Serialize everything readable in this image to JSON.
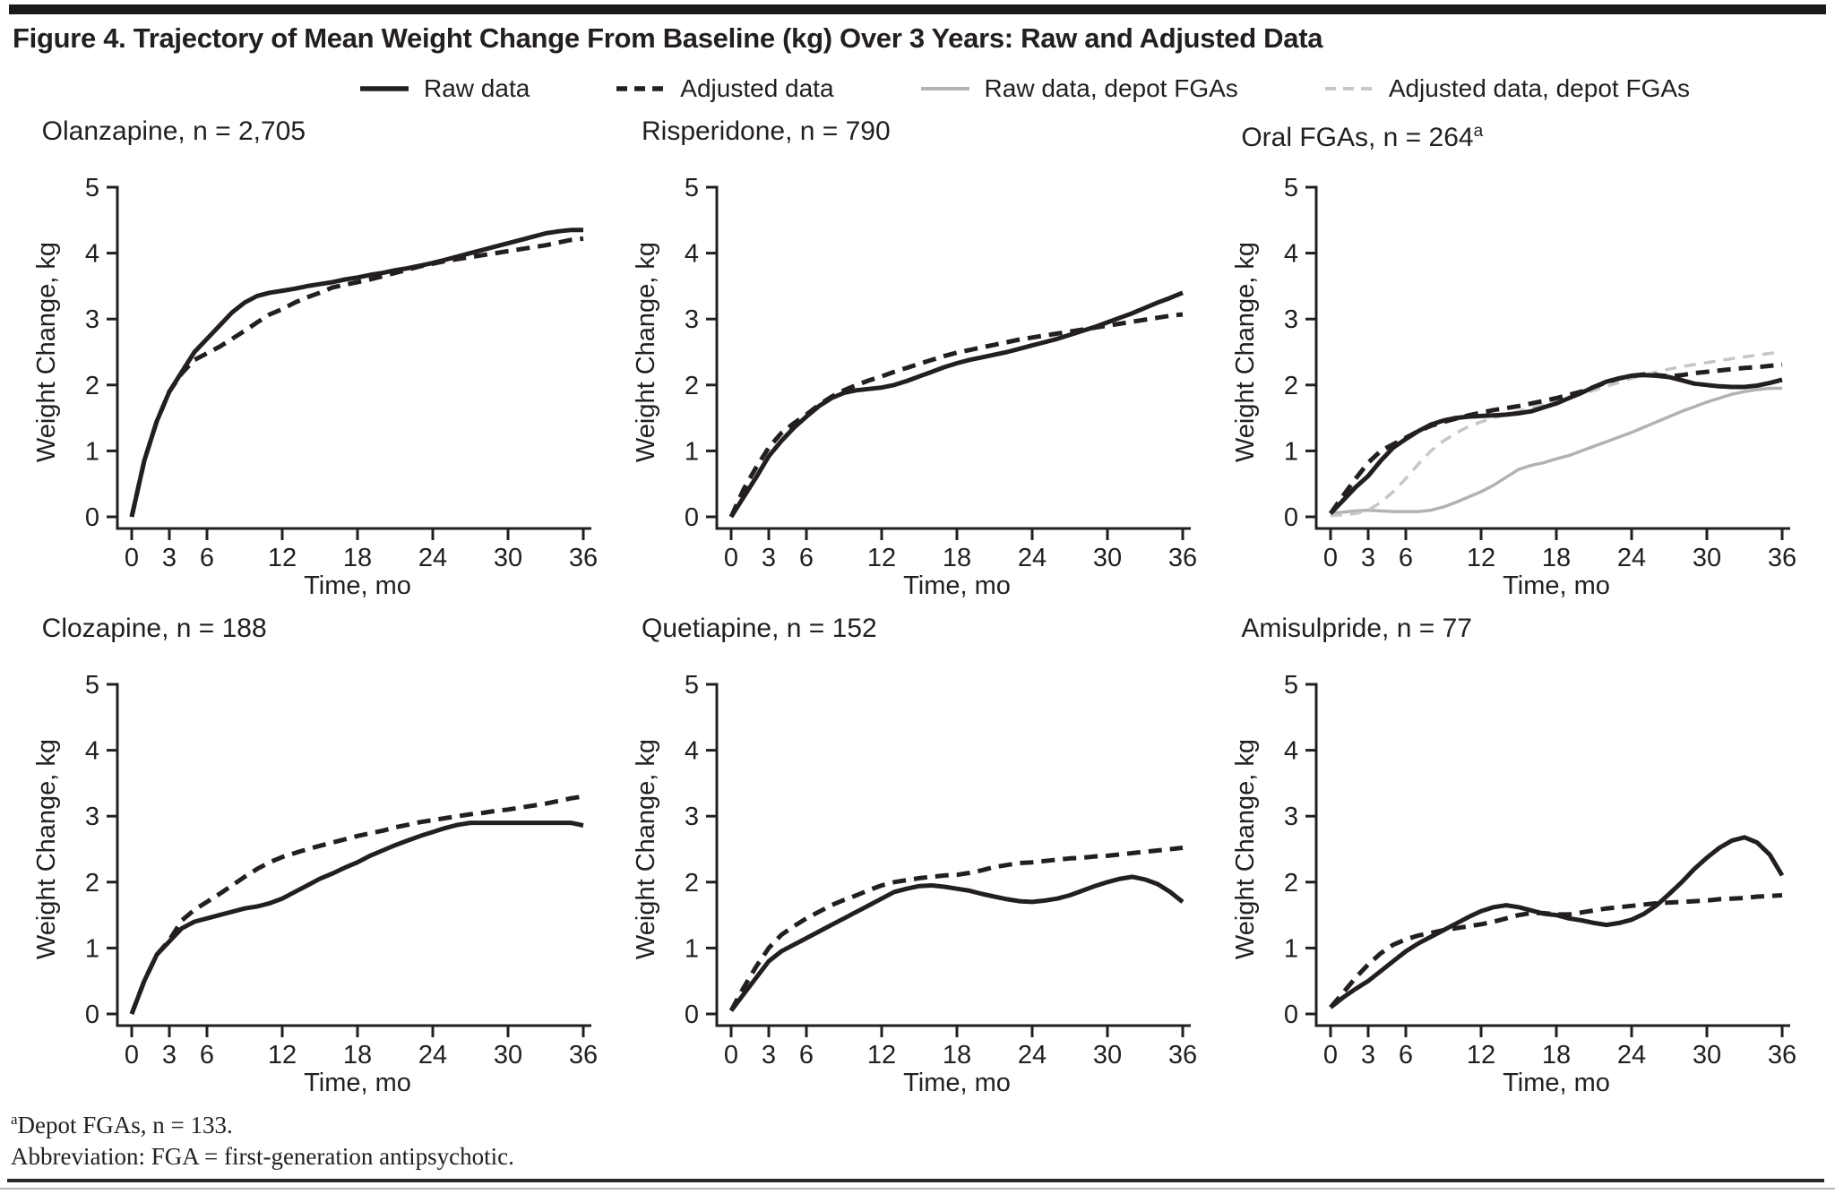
{
  "figure": {
    "title": "Figure 4. Trajectory of Mean Weight Change From Baseline (kg) Over 3 Years: Raw and Adjusted Data"
  },
  "legend": {
    "items": [
      {
        "label": "Raw data",
        "style": "raw"
      },
      {
        "label": "Adjusted data",
        "style": "adjusted"
      },
      {
        "label": "Raw data, depot FGAs",
        "style": "raw_depot"
      },
      {
        "label": "Adjusted data, depot FGAs",
        "style": "adjusted_depot"
      }
    ]
  },
  "line_styles": {
    "raw": {
      "color": "#231f20",
      "dasharray": "",
      "width": 5
    },
    "adjusted": {
      "color": "#231f20",
      "dasharray": "15 9",
      "width": 5
    },
    "raw_depot": {
      "color": "#b2b2b4",
      "dasharray": "",
      "width": 3.5
    },
    "adjusted_depot": {
      "color": "#c6c6c8",
      "dasharray": "13 9",
      "width": 3.5
    }
  },
  "colors": {
    "axis": "#231f20",
    "text": "#231f20",
    "top_bar": "#1c191b"
  },
  "footnotes": {
    "sup": "a",
    "line1": "Depot FGAs, n = 133.",
    "line2": "Abbreviation: FGA = first-generation antipsychotic."
  },
  "chart_data": [
    {
      "type": "line",
      "title": "Olanzapine, n = 2,705",
      "sup": "",
      "xlabel": "Time, mo",
      "ylabel": "Weight Change, kg",
      "xlim": [
        0,
        36
      ],
      "ylim": [
        0,
        5
      ],
      "xticks": [
        0,
        3,
        6,
        12,
        18,
        24,
        30,
        36
      ],
      "yticks": [
        0,
        1,
        2,
        3,
        4,
        5
      ],
      "x_start": 0,
      "x_step_months": 1,
      "grid": false,
      "series": [
        {
          "name": "Raw data",
          "style": "raw",
          "y": [
            0,
            0.85,
            1.45,
            1.9,
            2.2,
            2.5,
            2.7,
            2.9,
            3.1,
            3.25,
            3.35,
            3.4,
            3.43,
            3.46,
            3.5,
            3.53,
            3.56,
            3.6,
            3.63,
            3.67,
            3.7,
            3.74,
            3.77,
            3.81,
            3.85,
            3.9,
            3.95,
            4.0,
            4.05,
            4.1,
            4.15,
            4.2,
            4.25,
            4.3,
            4.33,
            4.35,
            4.35
          ]
        },
        {
          "name": "Adjusted data",
          "style": "adjusted",
          "y": [
            0,
            0.85,
            1.45,
            1.9,
            2.18,
            2.38,
            2.48,
            2.58,
            2.7,
            2.82,
            2.95,
            3.07,
            3.15,
            3.25,
            3.33,
            3.4,
            3.48,
            3.52,
            3.56,
            3.6,
            3.65,
            3.7,
            3.75,
            3.8,
            3.84,
            3.88,
            3.91,
            3.94,
            3.97,
            4.0,
            4.03,
            4.06,
            4.09,
            4.12,
            4.16,
            4.2,
            4.22
          ]
        }
      ]
    },
    {
      "type": "line",
      "title": "Risperidone, n = 790",
      "sup": "",
      "xlabel": "Time, mo",
      "ylabel": "Weight Change, kg",
      "xlim": [
        0,
        36
      ],
      "ylim": [
        0,
        5
      ],
      "xticks": [
        0,
        3,
        6,
        12,
        18,
        24,
        30,
        36
      ],
      "yticks": [
        0,
        1,
        2,
        3,
        4,
        5
      ],
      "x_start": 0,
      "x_step_months": 1,
      "grid": false,
      "series": [
        {
          "name": "Raw data",
          "style": "raw",
          "y": [
            0,
            0.3,
            0.6,
            0.92,
            1.15,
            1.35,
            1.52,
            1.68,
            1.8,
            1.88,
            1.92,
            1.94,
            1.96,
            2.0,
            2.06,
            2.13,
            2.2,
            2.27,
            2.33,
            2.38,
            2.42,
            2.46,
            2.5,
            2.55,
            2.6,
            2.65,
            2.7,
            2.76,
            2.82,
            2.88,
            2.95,
            3.02,
            3.09,
            3.17,
            3.25,
            3.32,
            3.4
          ]
        },
        {
          "name": "Adjusted data",
          "style": "adjusted",
          "y": [
            0,
            0.42,
            0.75,
            1.05,
            1.27,
            1.42,
            1.55,
            1.7,
            1.82,
            1.92,
            2.0,
            2.07,
            2.13,
            2.2,
            2.26,
            2.32,
            2.38,
            2.44,
            2.49,
            2.53,
            2.57,
            2.61,
            2.65,
            2.69,
            2.72,
            2.75,
            2.78,
            2.81,
            2.84,
            2.87,
            2.9,
            2.93,
            2.96,
            2.99,
            3.02,
            3.05,
            3.07
          ]
        }
      ]
    },
    {
      "type": "line",
      "title": "Oral FGAs, n = 264",
      "sup": "a",
      "xlabel": "Time, mo",
      "ylabel": "Weight Change, kg",
      "xlim": [
        0,
        36
      ],
      "ylim": [
        0,
        5
      ],
      "xticks": [
        0,
        3,
        6,
        12,
        18,
        24,
        30,
        36
      ],
      "yticks": [
        0,
        1,
        2,
        3,
        4,
        5
      ],
      "x_start": 0,
      "x_step_months": 1,
      "grid": false,
      "series": [
        {
          "name": "Raw data, depot FGAs",
          "style": "raw_depot",
          "y": [
            0.05,
            0.07,
            0.09,
            0.1,
            0.09,
            0.08,
            0.08,
            0.08,
            0.1,
            0.15,
            0.22,
            0.3,
            0.38,
            0.48,
            0.6,
            0.72,
            0.78,
            0.82,
            0.88,
            0.93,
            1.0,
            1.07,
            1.14,
            1.21,
            1.28,
            1.36,
            1.44,
            1.52,
            1.6,
            1.67,
            1.74,
            1.8,
            1.86,
            1.9,
            1.93,
            1.95,
            1.95
          ]
        },
        {
          "name": "Adjusted data, depot FGAs",
          "style": "adjusted_depot",
          "y": [
            0.02,
            0.03,
            0.05,
            0.1,
            0.22,
            0.38,
            0.58,
            0.8,
            1.0,
            1.15,
            1.27,
            1.37,
            1.44,
            1.5,
            1.55,
            1.6,
            1.65,
            1.7,
            1.75,
            1.8,
            1.86,
            1.92,
            1.98,
            2.04,
            2.1,
            2.15,
            2.2,
            2.24,
            2.28,
            2.31,
            2.34,
            2.37,
            2.4,
            2.43,
            2.45,
            2.48,
            2.5
          ]
        },
        {
          "name": "Raw data",
          "style": "raw",
          "y": [
            0.05,
            0.25,
            0.45,
            0.62,
            0.85,
            1.05,
            1.18,
            1.3,
            1.4,
            1.46,
            1.5,
            1.52,
            1.53,
            1.54,
            1.55,
            1.57,
            1.6,
            1.66,
            1.72,
            1.8,
            1.88,
            1.97,
            2.05,
            2.1,
            2.14,
            2.15,
            2.14,
            2.12,
            2.07,
            2.02,
            2.0,
            1.98,
            1.97,
            1.97,
            1.99,
            2.03,
            2.08
          ]
        },
        {
          "name": "Adjusted data",
          "style": "adjusted",
          "y": [
            0.05,
            0.32,
            0.58,
            0.82,
            1.0,
            1.1,
            1.2,
            1.3,
            1.38,
            1.44,
            1.49,
            1.54,
            1.58,
            1.62,
            1.65,
            1.68,
            1.72,
            1.76,
            1.8,
            1.85,
            1.9,
            1.97,
            2.04,
            2.1,
            2.14,
            2.16,
            2.15,
            2.13,
            2.15,
            2.18,
            2.2,
            2.22,
            2.24,
            2.26,
            2.27,
            2.29,
            2.31
          ]
        }
      ]
    },
    {
      "type": "line",
      "title": "Clozapine, n = 188",
      "sup": "",
      "xlabel": "Time, mo",
      "ylabel": "Weight Change, kg",
      "xlim": [
        0,
        36
      ],
      "ylim": [
        0,
        5
      ],
      "xticks": [
        0,
        3,
        6,
        12,
        18,
        24,
        30,
        36
      ],
      "yticks": [
        0,
        1,
        2,
        3,
        4,
        5
      ],
      "x_start": 0,
      "x_step_months": 1,
      "grid": false,
      "series": [
        {
          "name": "Raw data",
          "style": "raw",
          "y": [
            0,
            0.5,
            0.9,
            1.1,
            1.3,
            1.4,
            1.45,
            1.5,
            1.55,
            1.6,
            1.63,
            1.68,
            1.75,
            1.85,
            1.95,
            2.05,
            2.13,
            2.22,
            2.3,
            2.4,
            2.48,
            2.56,
            2.63,
            2.7,
            2.76,
            2.82,
            2.87,
            2.9,
            2.9,
            2.9,
            2.9,
            2.9,
            2.9,
            2.9,
            2.9,
            2.9,
            2.86
          ]
        },
        {
          "name": "Adjusted data",
          "style": "adjusted",
          "y": [
            0,
            0.5,
            0.9,
            1.12,
            1.42,
            1.58,
            1.7,
            1.82,
            1.95,
            2.08,
            2.2,
            2.3,
            2.38,
            2.44,
            2.5,
            2.55,
            2.6,
            2.65,
            2.7,
            2.74,
            2.78,
            2.83,
            2.87,
            2.91,
            2.94,
            2.97,
            3.0,
            3.03,
            3.05,
            3.08,
            3.1,
            3.13,
            3.16,
            3.19,
            3.23,
            3.27,
            3.3
          ]
        }
      ]
    },
    {
      "type": "line",
      "title": "Quetiapine, n = 152",
      "sup": "",
      "xlabel": "Time, mo",
      "ylabel": "Weight Change, kg",
      "xlim": [
        0,
        36
      ],
      "ylim": [
        0,
        5
      ],
      "xticks": [
        0,
        3,
        6,
        12,
        18,
        24,
        30,
        36
      ],
      "yticks": [
        0,
        1,
        2,
        3,
        4,
        5
      ],
      "x_start": 0,
      "x_step_months": 1,
      "grid": false,
      "series": [
        {
          "name": "Raw data",
          "style": "raw",
          "y": [
            0.05,
            0.3,
            0.55,
            0.8,
            0.95,
            1.05,
            1.15,
            1.25,
            1.35,
            1.45,
            1.55,
            1.65,
            1.75,
            1.85,
            1.9,
            1.94,
            1.95,
            1.93,
            1.9,
            1.87,
            1.82,
            1.78,
            1.74,
            1.71,
            1.7,
            1.72,
            1.75,
            1.8,
            1.87,
            1.94,
            2.0,
            2.05,
            2.08,
            2.04,
            1.97,
            1.85,
            1.7
          ]
        },
        {
          "name": "Adjusted data",
          "style": "adjusted",
          "y": [
            0.05,
            0.4,
            0.72,
            1.0,
            1.2,
            1.33,
            1.45,
            1.55,
            1.65,
            1.73,
            1.8,
            1.88,
            1.95,
            2.0,
            2.03,
            2.06,
            2.08,
            2.1,
            2.11,
            2.14,
            2.18,
            2.23,
            2.26,
            2.29,
            2.3,
            2.32,
            2.34,
            2.36,
            2.37,
            2.39,
            2.4,
            2.42,
            2.44,
            2.46,
            2.48,
            2.5,
            2.52
          ]
        }
      ]
    },
    {
      "type": "line",
      "title": "Amisulpride, n = 77",
      "sup": "",
      "xlabel": "Time, mo",
      "ylabel": "Weight Change, kg",
      "xlim": [
        0,
        36
      ],
      "ylim": [
        0,
        5
      ],
      "xticks": [
        0,
        3,
        6,
        12,
        18,
        24,
        30,
        36
      ],
      "yticks": [
        0,
        1,
        2,
        3,
        4,
        5
      ],
      "x_start": 0,
      "x_step_months": 1,
      "grid": false,
      "series": [
        {
          "name": "Raw data",
          "style": "raw",
          "y": [
            0.1,
            0.25,
            0.38,
            0.5,
            0.65,
            0.8,
            0.95,
            1.07,
            1.17,
            1.27,
            1.37,
            1.47,
            1.56,
            1.62,
            1.65,
            1.62,
            1.57,
            1.52,
            1.5,
            1.45,
            1.42,
            1.38,
            1.35,
            1.38,
            1.43,
            1.52,
            1.65,
            1.82,
            2.0,
            2.2,
            2.37,
            2.52,
            2.63,
            2.68,
            2.6,
            2.42,
            2.1
          ]
        },
        {
          "name": "Adjusted data",
          "style": "adjusted",
          "y": [
            0.1,
            0.32,
            0.55,
            0.75,
            0.92,
            1.05,
            1.13,
            1.19,
            1.23,
            1.27,
            1.3,
            1.33,
            1.36,
            1.4,
            1.45,
            1.5,
            1.53,
            1.53,
            1.51,
            1.51,
            1.54,
            1.57,
            1.6,
            1.62,
            1.64,
            1.66,
            1.68,
            1.69,
            1.7,
            1.71,
            1.72,
            1.74,
            1.75,
            1.76,
            1.78,
            1.79,
            1.8
          ]
        }
      ]
    }
  ]
}
